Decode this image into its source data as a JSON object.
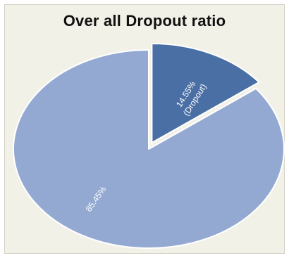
{
  "chart_data": {
    "type": "pie",
    "title": "Over all Dropout ratio",
    "slices": [
      {
        "value": 14.55,
        "label_lines": [
          "14.55%",
          "(Dropout)"
        ],
        "color": "#4a6fa5"
      },
      {
        "value": 85.45,
        "label_lines": [
          "85.45%"
        ],
        "color": "#93a9d2"
      }
    ],
    "start_angle_deg": 0,
    "exploded_slice": 0,
    "background_color": "#f2f1e8"
  }
}
